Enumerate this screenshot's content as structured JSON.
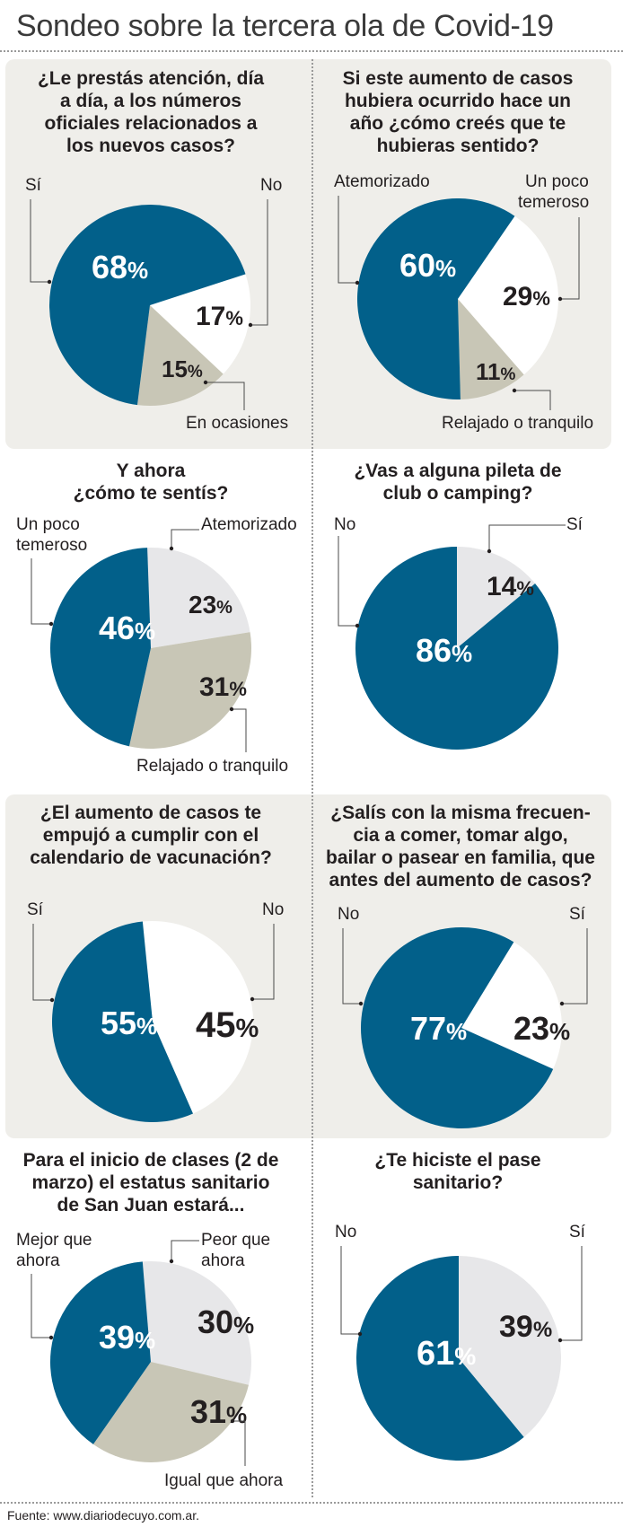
{
  "title": "Sondeo sobre la tercera ola de Covid-19",
  "source": "Fuente: www.diariodecuyo.com.ar.",
  "colors": {
    "blue": "#02608a",
    "gray": "#c8c6b6",
    "light": "#e7e7e9",
    "white": "#ffffff",
    "panel": "#efeeea"
  },
  "chart_data": [
    {
      "type": "pie",
      "title": "¿Le prestás atención, día a día, a los números oficiales relacionados a los nuevos casos?",
      "slices": [
        {
          "label": "No",
          "value": 17,
          "text": "17",
          "color": "white"
        },
        {
          "label": "En ocasiones",
          "value": 15,
          "text": "15",
          "color": "gray"
        },
        {
          "label": "Sí",
          "value": 68,
          "text": "68",
          "color": "blue"
        }
      ]
    },
    {
      "type": "pie",
      "title": "Si este aumento de casos hubiera ocurrido hace un año ¿cómo creés que te hubieras sentido?",
      "slices": [
        {
          "label": "Un poco temeroso",
          "value": 29,
          "text": "29",
          "color": "white"
        },
        {
          "label": "Relajado o tranquilo",
          "value": 11,
          "text": "11",
          "color": "gray"
        },
        {
          "label": "Atemorizado",
          "value": 60,
          "text": "60",
          "color": "blue"
        }
      ]
    },
    {
      "type": "pie",
      "title": "Y ahora ¿cómo te sentís?",
      "slices": [
        {
          "label": "Atemorizado",
          "value": 23,
          "text": "23",
          "color": "light"
        },
        {
          "label": "Relajado o tranquilo",
          "value": 31,
          "text": "31",
          "color": "gray"
        },
        {
          "label": "Un poco temeroso",
          "value": 46,
          "text": "46",
          "color": "blue"
        }
      ]
    },
    {
      "type": "pie",
      "title": "¿Vas a alguna pileta de club o camping?",
      "slices": [
        {
          "label": "Sí",
          "value": 14,
          "text": "14",
          "color": "light"
        },
        {
          "label": "No",
          "value": 86,
          "text": "86",
          "color": "blue"
        }
      ]
    },
    {
      "type": "pie",
      "title": "¿El aumento de casos te empujó a cumplir con el calendario de vacunación?",
      "slices": [
        {
          "label": "No",
          "value": 45,
          "text": "45",
          "color": "white"
        },
        {
          "label": "Sí",
          "value": 55,
          "text": "55",
          "color": "blue"
        }
      ]
    },
    {
      "type": "pie",
      "title": "¿Salís con la misma frecuen-cia a comer, tomar algo, bailar o pasear en familia, que antes del aumento de casos?",
      "slices": [
        {
          "label": "Sí",
          "value": 23,
          "text": "23",
          "color": "white"
        },
        {
          "label": "No",
          "value": 77,
          "text": "77",
          "color": "blue"
        }
      ]
    },
    {
      "type": "pie",
      "title": "Para el inicio de clases (2 de marzo) el estatus sanitario de San Juan estará...",
      "slices": [
        {
          "label": "Peor que ahora",
          "value": 30,
          "text": "30",
          "color": "light"
        },
        {
          "label": "Igual que ahora",
          "value": 31,
          "text": "31",
          "color": "gray"
        },
        {
          "label": "Mejor que ahora",
          "value": 39,
          "text": "39",
          "color": "blue"
        }
      ]
    },
    {
      "type": "pie",
      "title": "¿Te hiciste el pase sanitario?",
      "slices": [
        {
          "label": "Sí",
          "value": 39,
          "text": "39",
          "color": "light"
        },
        {
          "label": "No",
          "value": 61,
          "text": "61",
          "color": "blue"
        }
      ]
    }
  ],
  "questions": [
    {
      "lines": [
        "¿Le prestás atención, día",
        "a día, a los números",
        "oficiales relacionados a",
        "los nuevos casos?"
      ]
    },
    {
      "lines": [
        "Si este aumento de casos",
        "hubiera ocurrido hace un",
        "año ¿cómo creés que te",
        "hubieras sentido?"
      ]
    },
    {
      "lines": [
        "Y ahora",
        "¿cómo te sentís?"
      ]
    },
    {
      "lines": [
        "¿Vas a alguna pileta de",
        "club o camping?"
      ]
    },
    {
      "lines": [
        "¿El aumento de casos te",
        "empujó a cumplir con el",
        "calendario de vacunación?"
      ]
    },
    {
      "lines": [
        "¿Salís con la misma frecuen-",
        "cia a comer, tomar algo,",
        "bailar o pasear en familia, que",
        "antes del aumento de casos?"
      ]
    },
    {
      "lines": [
        "Para el inicio de clases (2 de",
        "marzo) el estatus sanitario",
        "de San Juan estará..."
      ]
    },
    {
      "lines": [
        "¿Te hiciste el pase",
        "sanitario?"
      ]
    }
  ],
  "labels": {
    "p1": {
      "si": "Sí",
      "no": "No",
      "en_ocasiones": "En ocasiones"
    },
    "p2": {
      "atemorizado": "Atemorizado",
      "un_poco_1": "Un poco",
      "un_poco_2": "temeroso",
      "relajado": "Relajado o tranquilo"
    },
    "p3": {
      "un_poco_1": "Un poco",
      "un_poco_2": "temeroso",
      "atemorizado": "Atemorizado",
      "relajado": "Relajado o tranquilo"
    },
    "p4": {
      "no": "No",
      "si": "Sí"
    },
    "p5": {
      "si": "Sí",
      "no": "No"
    },
    "p6": {
      "no": "No",
      "si": "Sí"
    },
    "p7": {
      "mejor_1": "Mejor que",
      "mejor_2": "ahora",
      "peor_1": "Peor que",
      "peor_2": "ahora",
      "igual": "Igual que ahora"
    },
    "p8": {
      "no": "No",
      "si": "Sí"
    }
  },
  "percent_sign": "%"
}
